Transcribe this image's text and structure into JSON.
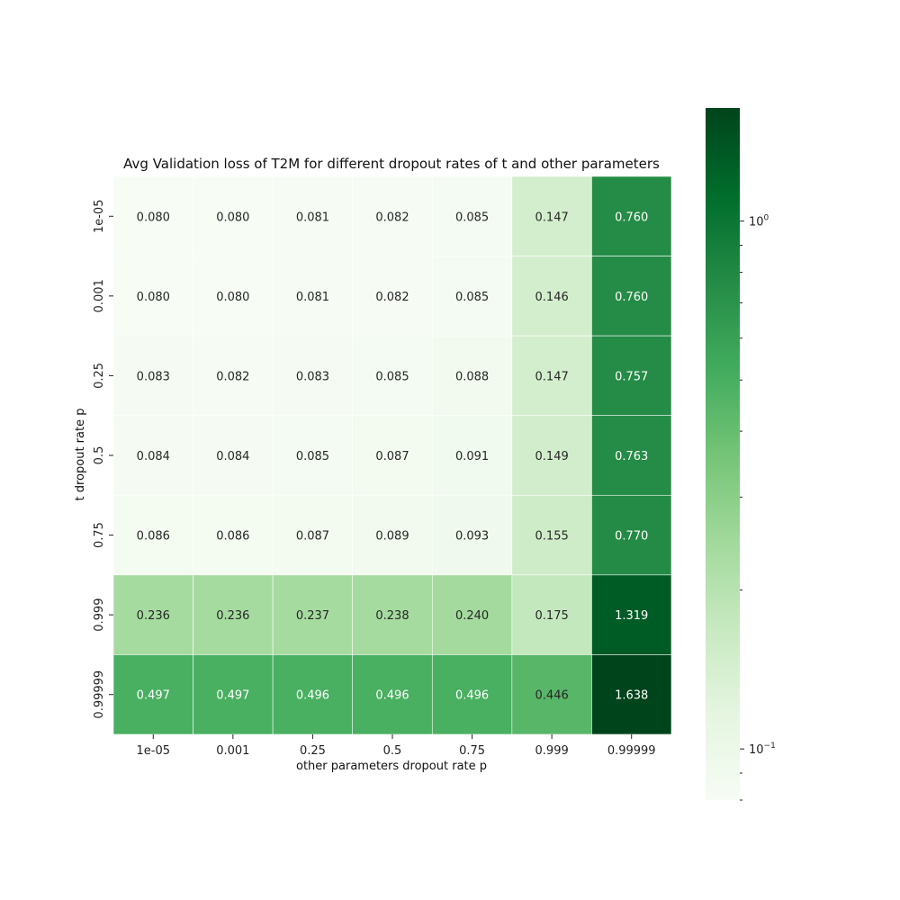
{
  "chart_data": {
    "type": "heatmap",
    "title": "Avg Validation loss of T2M for different dropout rates of t and other parameters",
    "xlabel": "other parameters dropout rate p",
    "ylabel": "t dropout rate p",
    "x_categories": [
      "1e-05",
      "0.001",
      "0.25",
      "0.5",
      "0.75",
      "0.999",
      "0.99999"
    ],
    "y_categories": [
      "1e-05",
      "0.001",
      "0.25",
      "0.5",
      "0.75",
      "0.999",
      "0.99999"
    ],
    "values": [
      [
        0.08,
        0.08,
        0.081,
        0.082,
        0.085,
        0.147,
        0.76
      ],
      [
        0.08,
        0.08,
        0.081,
        0.082,
        0.085,
        0.146,
        0.76
      ],
      [
        0.083,
        0.082,
        0.083,
        0.085,
        0.088,
        0.147,
        0.757
      ],
      [
        0.084,
        0.084,
        0.085,
        0.087,
        0.091,
        0.149,
        0.763
      ],
      [
        0.086,
        0.086,
        0.087,
        0.089,
        0.093,
        0.155,
        0.77
      ],
      [
        0.236,
        0.236,
        0.237,
        0.238,
        0.24,
        0.175,
        1.319
      ],
      [
        0.497,
        0.497,
        0.496,
        0.496,
        0.496,
        0.446,
        1.638
      ]
    ],
    "colormap": "Greens",
    "color_scale": "log",
    "color_range": [
      0.08,
      1.638
    ],
    "colorbar": {
      "major_ticks": [
        {
          "value": 1,
          "label": "10",
          "exponent": "0"
        },
        {
          "value": 0.1,
          "label": "10",
          "exponent": "−1"
        }
      ]
    },
    "grid": false
  }
}
